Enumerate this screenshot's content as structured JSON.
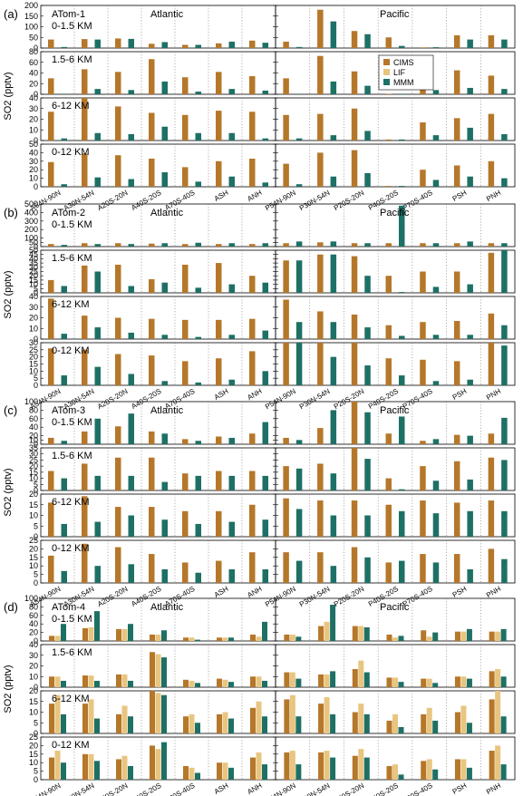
{
  "colors": {
    "CIMS": "#b5772a",
    "LIF": "#e8c580",
    "MMM": "#1e7065"
  },
  "legend": [
    "CIMS",
    "LIF",
    "MMM"
  ],
  "ylabel": "SO2 (pptv)",
  "regions_atlantic": [
    "A54N-90N",
    "A30N-54N",
    "A20S-20N",
    "A40S-20S",
    "A70S-40S",
    "ASH",
    "ANH"
  ],
  "regions_pacific": [
    "P54N-90N",
    "P30N-54N",
    "P20S-20N",
    "P40S-20S",
    "P70S-40S",
    "PSH",
    "PNH"
  ],
  "basin_labels": {
    "atlantic": "Atlantic",
    "pacific": "Pacific"
  },
  "chart_data": [
    {
      "type": "bar",
      "panel": "(a)",
      "title": "ATom-1",
      "rows": [
        {
          "alt": "0-1.5 KM",
          "yticks": [
            0,
            50,
            100,
            150,
            200
          ],
          "ylim": [
            0,
            200
          ],
          "CIMS": [
            40,
            42,
            45,
            20,
            15,
            22,
            35,
            30,
            180,
            80,
            50,
            3,
            60,
            60
          ],
          "LIF": null,
          "MMM": [
            5,
            40,
            43,
            28,
            15,
            30,
            25,
            5,
            125,
            65,
            10,
            4,
            40,
            40
          ]
        },
        {
          "alt": "1.5-6 KM",
          "yticks": [
            0,
            20,
            40,
            60,
            80
          ],
          "ylim": [
            0,
            80
          ],
          "CIMS": [
            30,
            47,
            42,
            66,
            32,
            42,
            34,
            30,
            72,
            43,
            1,
            28,
            45,
            35
          ],
          "LIF": null,
          "MMM": [
            1,
            10,
            8,
            24,
            5,
            10,
            7,
            1,
            24,
            16,
            1,
            8,
            12,
            10
          ]
        },
        {
          "alt": "6-12 KM",
          "yticks": [
            0,
            10,
            20,
            30,
            40
          ],
          "ylim": [
            0,
            40
          ],
          "CIMS": [
            27,
            40,
            32,
            26,
            24,
            28,
            27,
            24,
            25,
            30,
            1,
            17,
            21,
            25
          ],
          "LIF": null,
          "MMM": [
            2,
            7,
            6,
            13,
            7,
            7,
            2,
            2,
            5,
            9,
            1,
            5,
            12,
            6
          ]
        },
        {
          "alt": "0-12 KM",
          "yticks": [
            0,
            10,
            20,
            30,
            40,
            50
          ],
          "ylim": [
            0,
            50
          ],
          "CIMS": [
            29,
            39,
            37,
            33,
            23,
            30,
            33,
            27,
            40,
            43,
            1,
            20,
            25,
            30
          ],
          "LIF": null,
          "MMM": [
            3,
            11,
            9,
            17,
            6,
            12,
            5,
            3,
            12,
            16,
            1,
            8,
            12,
            10
          ]
        }
      ]
    },
    {
      "type": "bar",
      "panel": "(b)",
      "title": "ATom-2",
      "rows": [
        {
          "alt": "0-1.5 KM",
          "yticks": [
            0,
            50,
            100,
            200,
            300,
            400,
            500
          ],
          "ylim": [
            0,
            500
          ],
          "CIMS": [
            30,
            40,
            40,
            35,
            30,
            30,
            30,
            40,
            50,
            40,
            40,
            40,
            40,
            40
          ],
          "LIF": null,
          "MMM": [
            20,
            30,
            30,
            40,
            45,
            40,
            40,
            60,
            60,
            40,
            480,
            40,
            60,
            40
          ]
        },
        {
          "alt": "1.5-6 KM",
          "yticks": [
            0,
            5,
            10,
            15,
            20,
            25,
            30,
            35,
            40,
            45,
            50
          ],
          "ylim": [
            0,
            50
          ],
          "CIMS": [
            15,
            32,
            33,
            16,
            33,
            35,
            20,
            38,
            45,
            43,
            20,
            25,
            25,
            47
          ],
          "LIF": null,
          "MMM": [
            8,
            25,
            8,
            12,
            6,
            10,
            12,
            38,
            45,
            20,
            1,
            7,
            10,
            50
          ]
        },
        {
          "alt": "6-12 KM",
          "yticks": [
            0,
            10,
            20,
            30,
            40
          ],
          "ylim": [
            0,
            40
          ],
          "CIMS": [
            38,
            22,
            20,
            19,
            18,
            18,
            19,
            37,
            26,
            23,
            13,
            16,
            17,
            24
          ],
          "LIF": null,
          "MMM": [
            5,
            11,
            6,
            4,
            2,
            4,
            8,
            16,
            16,
            11,
            3,
            4,
            4,
            13
          ]
        },
        {
          "alt": "0-12 KM",
          "yticks": [
            0,
            5,
            10,
            15,
            20,
            25,
            30
          ],
          "ylim": [
            0,
            30
          ],
          "CIMS": [
            26,
            25,
            22,
            21,
            17,
            19,
            24,
            37,
            34,
            37,
            19,
            18,
            17,
            32
          ],
          "LIF": null,
          "MMM": [
            7,
            13,
            8,
            3,
            2,
            4,
            10,
            33,
            20,
            14,
            7,
            3,
            4,
            28
          ]
        }
      ]
    },
    {
      "type": "bar",
      "panel": "(c)",
      "title": "ATom-3",
      "rows": [
        {
          "alt": "0-1.5 KM",
          "yticks": [
            0,
            10,
            20,
            40,
            60,
            80,
            100
          ],
          "ylim": [
            0,
            100
          ],
          "CIMS": [
            15,
            30,
            42,
            30,
            12,
            18,
            25,
            15,
            38,
            105,
            25,
            8,
            22,
            25
          ],
          "LIF": null,
          "MMM": [
            8,
            60,
            72,
            25,
            8,
            15,
            52,
            10,
            80,
            75,
            65,
            12,
            20,
            62
          ]
        },
        {
          "alt": "1.5-6 KM",
          "yticks": [
            0,
            5,
            10,
            15,
            20,
            25,
            30,
            35
          ],
          "ylim": [
            0,
            35
          ],
          "CIMS": [
            16,
            22,
            27,
            27,
            14,
            16,
            16,
            20,
            22,
            36,
            10,
            20,
            24,
            27
          ],
          "LIF": null,
          "MMM": [
            10,
            12,
            12,
            7,
            12,
            12,
            12,
            18,
            14,
            26,
            1,
            8,
            9,
            25
          ]
        },
        {
          "alt": "6-12 KM",
          "yticks": [
            0,
            5,
            10,
            15,
            20
          ],
          "ylim": [
            0,
            20
          ],
          "CIMS": [
            16,
            19,
            14,
            14,
            12,
            12,
            15,
            18,
            17,
            17,
            15,
            17,
            16,
            17
          ],
          "LIF": null,
          "MMM": [
            6,
            7,
            10,
            8,
            6,
            7,
            8,
            13,
            10,
            10,
            12,
            11,
            12,
            12
          ]
        },
        {
          "alt": "0-12 KM",
          "yticks": [
            0,
            5,
            10,
            15,
            20,
            25
          ],
          "ylim": [
            0,
            25
          ],
          "CIMS": [
            16,
            23,
            21,
            17,
            12,
            13,
            18,
            18,
            18,
            21,
            12,
            17,
            17,
            20
          ],
          "LIF": null,
          "MMM": [
            7,
            10,
            11,
            8,
            6,
            8,
            8,
            13,
            10,
            15,
            13,
            12,
            8,
            14
          ]
        }
      ]
    },
    {
      "type": "bar",
      "panel": "(d)",
      "title": "ATom-4",
      "rows": [
        {
          "alt": "0-1.5 KM",
          "yticks": [
            0,
            20,
            40,
            60,
            80,
            100
          ],
          "ylim": [
            0,
            100
          ],
          "CIMS": [
            12,
            30,
            28,
            15,
            8,
            8,
            15,
            15,
            35,
            35,
            15,
            25,
            22,
            22
          ],
          "LIF": [
            12,
            32,
            28,
            15,
            8,
            8,
            10,
            15,
            45,
            35,
            8,
            10,
            22,
            22
          ],
          "MMM": [
            40,
            70,
            40,
            25,
            3,
            8,
            45,
            10,
            85,
            32,
            12,
            20,
            28,
            28
          ]
        },
        {
          "alt": "1.5-6 KM",
          "yticks": [
            0,
            10,
            20,
            30,
            40
          ],
          "ylim": [
            0,
            40
          ],
          "CIMS": [
            10,
            11,
            12,
            33,
            7,
            8,
            10,
            14,
            12,
            17,
            9,
            8,
            10,
            15
          ],
          "LIF": [
            10,
            11,
            12,
            31,
            6,
            7,
            10,
            14,
            12,
            25,
            9,
            8,
            10,
            17
          ],
          "MMM": [
            6,
            6,
            6,
            28,
            4,
            5,
            6,
            8,
            15,
            14,
            5,
            4,
            8,
            10
          ]
        },
        {
          "alt": "6-12 KM",
          "yticks": [
            0,
            5,
            10,
            15,
            20
          ],
          "ylim": [
            0,
            20
          ],
          "CIMS": [
            14,
            14,
            9,
            20,
            8,
            9,
            12,
            16,
            14,
            10,
            6,
            9,
            10,
            16
          ],
          "LIF": [
            18,
            16,
            13,
            19,
            9,
            10,
            15,
            18,
            17,
            14,
            9,
            12,
            13,
            20
          ],
          "MMM": [
            9,
            7,
            8,
            18,
            5,
            7,
            8,
            8,
            9,
            9,
            3,
            6,
            5,
            8
          ]
        },
        {
          "alt": "0-12 KM",
          "yticks": [
            0,
            5,
            10,
            15,
            20,
            25
          ],
          "ylim": [
            0,
            25
          ],
          "CIMS": [
            13,
            15,
            12,
            20,
            8,
            10,
            13,
            16,
            16,
            14,
            8,
            11,
            12,
            17
          ],
          "LIF": [
            17,
            15,
            14,
            18,
            7,
            10,
            16,
            17,
            17,
            18,
            9,
            12,
            12,
            20
          ],
          "MMM": [
            10,
            11,
            8,
            22,
            4,
            7,
            9,
            9,
            13,
            13,
            3,
            6,
            7,
            9
          ]
        }
      ]
    }
  ]
}
